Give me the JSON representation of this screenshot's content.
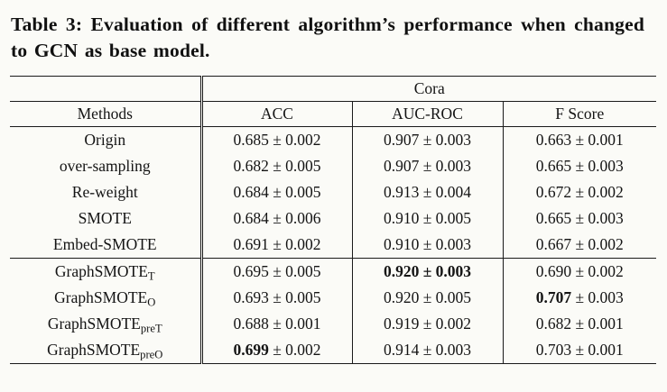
{
  "caption": {
    "text": "Table 3: Evaluation of different algorithm’s performance when changed to GCN as base model."
  },
  "table": {
    "dataset_header": "Cora",
    "columns": [
      "Methods",
      "ACC",
      "AUC-ROC",
      "F Score"
    ],
    "rows": [
      {
        "method_base": "Origin",
        "method_sub": "",
        "group_end": false,
        "cells": [
          {
            "text": "0.685 ± 0.002",
            "bold": "none"
          },
          {
            "text": "0.907 ± 0.003",
            "bold": "none"
          },
          {
            "text": "0.663 ± 0.001",
            "bold": "none"
          }
        ]
      },
      {
        "method_base": "over-sampling",
        "method_sub": "",
        "group_end": false,
        "cells": [
          {
            "text": "0.682 ± 0.005",
            "bold": "none"
          },
          {
            "text": "0.907 ± 0.003",
            "bold": "none"
          },
          {
            "text": "0.665 ± 0.003",
            "bold": "none"
          }
        ]
      },
      {
        "method_base": "Re-weight",
        "method_sub": "",
        "group_end": false,
        "cells": [
          {
            "text": "0.684 ± 0.005",
            "bold": "none"
          },
          {
            "text": "0.913 ± 0.004",
            "bold": "none"
          },
          {
            "text": "0.672 ± 0.002",
            "bold": "none"
          }
        ]
      },
      {
        "method_base": "SMOTE",
        "method_sub": "",
        "group_end": false,
        "cells": [
          {
            "text": "0.684 ± 0.006",
            "bold": "none"
          },
          {
            "text": "0.910 ± 0.005",
            "bold": "none"
          },
          {
            "text": "0.665 ± 0.003",
            "bold": "none"
          }
        ]
      },
      {
        "method_base": "Embed-SMOTE",
        "method_sub": "",
        "group_end": true,
        "cells": [
          {
            "text": "0.691 ± 0.002",
            "bold": "none"
          },
          {
            "text": "0.910 ± 0.003",
            "bold": "none"
          },
          {
            "text": "0.667 ± 0.002",
            "bold": "none"
          }
        ]
      },
      {
        "method_base": "GraphSMOTE",
        "method_sub": "T",
        "group_end": false,
        "cells": [
          {
            "text": "0.695 ± 0.005",
            "bold": "none"
          },
          {
            "text": "0.920 ± 0.003",
            "bold": "all"
          },
          {
            "text": "0.690 ± 0.002",
            "bold": "none"
          }
        ]
      },
      {
        "method_base": "GraphSMOTE",
        "method_sub": "O",
        "group_end": false,
        "cells": [
          {
            "text": "0.693 ± 0.005",
            "bold": "none"
          },
          {
            "text": "0.920 ± 0.005",
            "bold": "none"
          },
          {
            "text": "0.707 ± 0.003",
            "bold": "mean"
          }
        ]
      },
      {
        "method_base": "GraphSMOTE",
        "method_sub": "preT",
        "group_end": false,
        "cells": [
          {
            "text": "0.688 ± 0.001",
            "bold": "none"
          },
          {
            "text": "0.919 ± 0.002",
            "bold": "none"
          },
          {
            "text": "0.682 ± 0.001",
            "bold": "none"
          }
        ]
      },
      {
        "method_base": "GraphSMOTE",
        "method_sub": "preO",
        "group_end": false,
        "cells": [
          {
            "text": "0.699 ± 0.002",
            "bold": "mean"
          },
          {
            "text": "0.914 ± 0.003",
            "bold": "none"
          },
          {
            "text": "0.703 ± 0.001",
            "bold": "none"
          }
        ]
      }
    ]
  }
}
